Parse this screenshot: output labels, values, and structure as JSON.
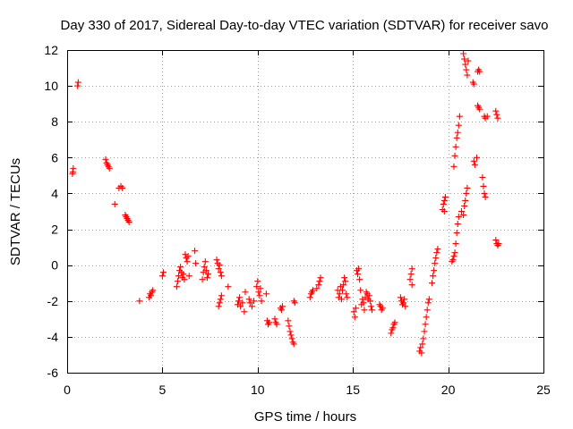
{
  "chart_data": {
    "type": "scatter",
    "title": "Day 330 of 2017, Sidereal Day-to-day VTEC variation (SDTVAR) for receiver savo",
    "xlabel": "GPS time / hours",
    "ylabel": "SDTVAR / TECUs",
    "xlim": [
      0,
      25
    ],
    "ylim": [
      -6,
      12
    ],
    "xticks": [
      0,
      5,
      10,
      15,
      20,
      25
    ],
    "yticks": [
      -6,
      -4,
      -2,
      0,
      2,
      4,
      6,
      8,
      10,
      12
    ],
    "grid": true,
    "marker": "+",
    "color": "#ff0000",
    "series": [
      {
        "name": "savo",
        "points": [
          [
            0.28,
            5.1
          ],
          [
            0.3,
            5.2
          ],
          [
            0.32,
            5.4
          ],
          [
            0.55,
            10.0
          ],
          [
            0.58,
            10.2
          ],
          [
            2.02,
            5.9
          ],
          [
            2.07,
            5.7
          ],
          [
            2.12,
            5.6
          ],
          [
            2.17,
            5.5
          ],
          [
            2.22,
            5.4
          ],
          [
            2.5,
            3.4
          ],
          [
            2.72,
            4.3
          ],
          [
            2.82,
            4.4
          ],
          [
            2.9,
            4.3
          ],
          [
            3.05,
            2.8
          ],
          [
            3.1,
            2.7
          ],
          [
            3.15,
            2.6
          ],
          [
            3.2,
            2.5
          ],
          [
            3.25,
            2.4
          ],
          [
            3.8,
            -2.0
          ],
          [
            4.3,
            -1.8
          ],
          [
            4.35,
            -1.6
          ],
          [
            4.4,
            -1.7
          ],
          [
            4.45,
            -1.5
          ],
          [
            4.5,
            -1.4
          ],
          [
            5.0,
            -0.6
          ],
          [
            5.05,
            -0.4
          ],
          [
            5.75,
            -1.2
          ],
          [
            5.8,
            -0.9
          ],
          [
            5.85,
            -0.6
          ],
          [
            5.9,
            -0.3
          ],
          [
            5.95,
            -0.1
          ],
          [
            6.0,
            -0.4
          ],
          [
            6.05,
            -0.7
          ],
          [
            6.1,
            -0.5
          ],
          [
            6.15,
            -0.8
          ],
          [
            6.2,
            0.6
          ],
          [
            6.25,
            0.4
          ],
          [
            6.3,
            0.2
          ],
          [
            6.35,
            0.5
          ],
          [
            6.4,
            -0.6
          ],
          [
            6.7,
            0.8
          ],
          [
            6.75,
            0.1
          ],
          [
            7.1,
            -0.8
          ],
          [
            7.15,
            -0.4
          ],
          [
            7.2,
            -0.1
          ],
          [
            7.25,
            0.2
          ],
          [
            7.3,
            -0.3
          ],
          [
            7.35,
            -0.7
          ],
          [
            7.4,
            -0.5
          ],
          [
            7.85,
            0.3
          ],
          [
            7.9,
            0.1
          ],
          [
            7.95,
            -0.2
          ],
          [
            8.0,
            0.0
          ],
          [
            8.05,
            -0.4
          ],
          [
            8.1,
            -0.6
          ],
          [
            7.95,
            -2.3
          ],
          [
            8.0,
            -2.1
          ],
          [
            8.05,
            -1.9
          ],
          [
            8.1,
            -1.7
          ],
          [
            8.45,
            -1.2
          ],
          [
            8.95,
            -2.2
          ],
          [
            9.0,
            -2.0
          ],
          [
            9.05,
            -1.8
          ],
          [
            9.1,
            -2.3
          ],
          [
            9.2,
            -2.1
          ],
          [
            9.3,
            -2.6
          ],
          [
            9.35,
            -1.5
          ],
          [
            9.55,
            -1.9
          ],
          [
            9.6,
            -2.1
          ],
          [
            9.7,
            -2.3
          ],
          [
            9.8,
            -2.0
          ],
          [
            9.95,
            -1.2
          ],
          [
            10.0,
            -0.9
          ],
          [
            10.05,
            -1.5
          ],
          [
            10.1,
            -1.7
          ],
          [
            10.15,
            -1.3
          ],
          [
            10.2,
            -2.0
          ],
          [
            10.45,
            -1.6
          ],
          [
            10.5,
            -3.1
          ],
          [
            10.55,
            -3.3
          ],
          [
            10.6,
            -3.2
          ],
          [
            10.9,
            -3.0
          ],
          [
            10.95,
            -3.2
          ],
          [
            11.0,
            -3.3
          ],
          [
            11.2,
            -2.4
          ],
          [
            11.25,
            -2.5
          ],
          [
            11.3,
            -2.3
          ],
          [
            11.6,
            -3.1
          ],
          [
            11.65,
            -3.4
          ],
          [
            11.7,
            -3.7
          ],
          [
            11.75,
            -3.9
          ],
          [
            11.8,
            -4.1
          ],
          [
            11.85,
            -4.3
          ],
          [
            11.9,
            -4.4
          ],
          [
            11.9,
            -2.0
          ],
          [
            11.95,
            -2.1
          ],
          [
            12.75,
            -1.8
          ],
          [
            12.8,
            -1.6
          ],
          [
            12.85,
            -1.5
          ],
          [
            12.9,
            -1.4
          ],
          [
            13.1,
            -1.3
          ],
          [
            13.2,
            -1.1
          ],
          [
            13.25,
            -0.9
          ],
          [
            13.3,
            -0.7
          ],
          [
            14.2,
            -1.4
          ],
          [
            14.25,
            -1.8
          ],
          [
            14.3,
            -1.6
          ],
          [
            14.35,
            -1.2
          ],
          [
            14.4,
            -1.9
          ],
          [
            14.45,
            -1.4
          ],
          [
            14.5,
            -1.1
          ],
          [
            14.55,
            -0.7
          ],
          [
            14.6,
            -0.9
          ],
          [
            14.65,
            -1.6
          ],
          [
            14.7,
            -1.8
          ],
          [
            15.05,
            -2.6
          ],
          [
            15.1,
            -2.9
          ],
          [
            15.15,
            -2.4
          ],
          [
            15.2,
            -0.3
          ],
          [
            15.25,
            -0.5
          ],
          [
            15.3,
            -0.2
          ],
          [
            15.35,
            -0.8
          ],
          [
            15.4,
            -1.4
          ],
          [
            15.45,
            -2.2
          ],
          [
            15.5,
            -1.9
          ],
          [
            15.55,
            -2.1
          ],
          [
            15.6,
            -2.5
          ],
          [
            15.65,
            -1.8
          ],
          [
            15.7,
            -1.5
          ],
          [
            15.75,
            -1.6
          ],
          [
            15.8,
            -1.9
          ],
          [
            15.85,
            -1.7
          ],
          [
            15.9,
            -2.0
          ],
          [
            15.95,
            -2.3
          ],
          [
            16.0,
            -2.5
          ],
          [
            16.4,
            -2.2
          ],
          [
            16.45,
            -2.3
          ],
          [
            16.5,
            -2.5
          ],
          [
            16.55,
            -2.4
          ],
          [
            17.0,
            -3.8
          ],
          [
            17.05,
            -3.6
          ],
          [
            17.1,
            -3.5
          ],
          [
            17.15,
            -3.3
          ],
          [
            17.2,
            -3.2
          ],
          [
            17.5,
            -1.8
          ],
          [
            17.55,
            -2.0
          ],
          [
            17.6,
            -2.2
          ],
          [
            17.65,
            -2.1
          ],
          [
            17.7,
            -1.9
          ],
          [
            17.75,
            -2.3
          ],
          [
            18.0,
            -0.8
          ],
          [
            18.05,
            -0.5
          ],
          [
            18.1,
            -0.2
          ],
          [
            18.1,
            -1.1
          ],
          [
            18.5,
            -4.8
          ],
          [
            18.55,
            -4.6
          ],
          [
            18.6,
            -4.9
          ],
          [
            18.65,
            -4.4
          ],
          [
            18.7,
            -4.1
          ],
          [
            18.75,
            -3.7
          ],
          [
            18.8,
            -3.3
          ],
          [
            18.85,
            -2.9
          ],
          [
            18.9,
            -2.5
          ],
          [
            18.95,
            -2.1
          ],
          [
            19.0,
            -1.9
          ],
          [
            19.15,
            -1.0
          ],
          [
            19.2,
            -0.6
          ],
          [
            19.25,
            -0.3
          ],
          [
            19.3,
            0.1
          ],
          [
            19.35,
            0.4
          ],
          [
            19.4,
            0.7
          ],
          [
            19.45,
            0.9
          ],
          [
            19.7,
            3.1
          ],
          [
            19.75,
            3.4
          ],
          [
            19.8,
            3.6
          ],
          [
            19.85,
            3.8
          ],
          [
            19.8,
            3.0
          ],
          [
            20.2,
            0.2
          ],
          [
            20.25,
            0.3
          ],
          [
            20.3,
            0.5
          ],
          [
            20.35,
            0.7
          ],
          [
            20.4,
            1.2
          ],
          [
            20.45,
            1.8
          ],
          [
            20.5,
            2.3
          ],
          [
            20.55,
            2.7
          ],
          [
            20.3,
            5.5
          ],
          [
            20.35,
            6.1
          ],
          [
            20.4,
            6.6
          ],
          [
            20.45,
            7.1
          ],
          [
            20.5,
            7.4
          ],
          [
            20.55,
            7.8
          ],
          [
            20.6,
            8.3
          ],
          [
            20.8,
            11.8
          ],
          [
            20.85,
            11.5
          ],
          [
            20.9,
            11.2
          ],
          [
            20.95,
            10.9
          ],
          [
            21.0,
            10.6
          ],
          [
            21.05,
            11.4
          ],
          [
            20.7,
            3.0
          ],
          [
            20.8,
            2.8
          ],
          [
            20.85,
            3.3
          ],
          [
            20.9,
            3.6
          ],
          [
            20.95,
            4.0
          ],
          [
            21.0,
            4.3
          ],
          [
            21.3,
            10.2
          ],
          [
            21.35,
            10.1
          ],
          [
            21.35,
            5.8
          ],
          [
            21.4,
            5.6
          ],
          [
            21.5,
            6.0
          ],
          [
            21.55,
            10.8
          ],
          [
            21.6,
            10.9
          ],
          [
            21.65,
            10.8
          ],
          [
            21.55,
            8.9
          ],
          [
            21.6,
            8.8
          ],
          [
            21.65,
            8.7
          ],
          [
            21.8,
            4.9
          ],
          [
            21.85,
            4.4
          ],
          [
            21.9,
            4.0
          ],
          [
            21.95,
            3.8
          ],
          [
            21.9,
            8.3
          ],
          [
            21.95,
            8.2
          ],
          [
            22.05,
            8.3
          ],
          [
            22.5,
            8.6
          ],
          [
            22.55,
            8.4
          ],
          [
            22.6,
            8.2
          ],
          [
            22.5,
            1.4
          ],
          [
            22.55,
            1.2
          ],
          [
            22.6,
            1.1
          ],
          [
            22.65,
            1.2
          ]
        ]
      }
    ]
  }
}
